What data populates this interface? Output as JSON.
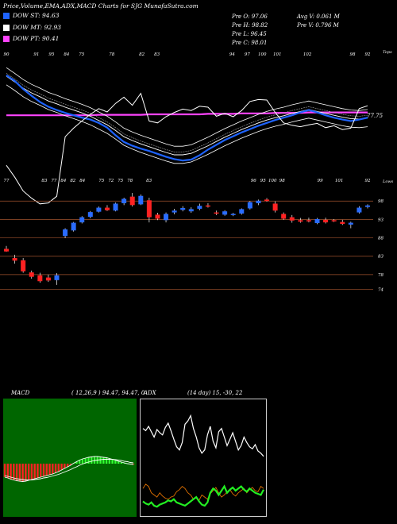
{
  "header": {
    "title": "Price,Volume,EMA,ADX,MACD Charts for SJG MunafaSutra.com",
    "stats": {
      "open": "Pre  O: 97.06",
      "high": "Pre  H: 98.82",
      "low": "Pre  L: 96.45",
      "close": "Pre  C: 98.01",
      "avg_volume": "Avg V: 0.061  M",
      "prev_volume": "Pre  V: 0.796  M"
    }
  },
  "legend": [
    {
      "label": "DOW ST: 94.63",
      "color": "#1e63ff"
    },
    {
      "label": "DOW MT: 92.93",
      "color": "#ffffff"
    },
    {
      "label": "DOW PT: 90.41",
      "color": "#ff44ff"
    }
  ],
  "upper_labels": {
    "top_tick_labels": [
      "90",
      "",
      "91",
      "95",
      "84",
      "75",
      "",
      "78",
      "",
      "82",
      "83",
      "",
      "",
      "",
      "",
      "94",
      "97",
      "100",
      "101",
      "",
      "102",
      "",
      "",
      "98",
      "92"
    ],
    "top_right": "Tops",
    "lower_tick_labels": [
      "77",
      "",
      "",
      "",
      "83",
      "77",
      "84",
      "82",
      "84",
      "",
      "75",
      "72",
      "75",
      "78",
      "",
      "83",
      "",
      "",
      "",
      "",
      "",
      "",
      "",
      "",
      "",
      "",
      "96",
      "95",
      "100",
      "98",
      "",
      "",
      "",
      "99",
      "",
      "101",
      "",
      "",
      "92"
    ],
    "lower_right": "Lows",
    "ema_value": "77.75"
  },
  "chart_data": [
    {
      "type": "candlestick",
      "title": "",
      "y_ticks": [
        98,
        93,
        88,
        83,
        78,
        74
      ],
      "ylim": [
        71.5,
        101.5
      ],
      "candles": [
        {
          "o": 85.0,
          "h": 85.8,
          "l": 84.2,
          "c": 84.3,
          "color": "red"
        },
        {
          "o": 82.5,
          "h": 83.4,
          "l": 81.0,
          "c": 81.8,
          "color": "red"
        },
        {
          "o": 81.9,
          "h": 82.5,
          "l": 78.5,
          "c": 78.9,
          "color": "red"
        },
        {
          "o": 78.6,
          "h": 79.1,
          "l": 76.9,
          "c": 77.4,
          "color": "red"
        },
        {
          "o": 77.8,
          "h": 78.5,
          "l": 75.8,
          "c": 76.2,
          "color": "red"
        },
        {
          "o": 77.2,
          "h": 78.0,
          "l": 76.0,
          "c": 76.4,
          "color": "red"
        },
        {
          "o": 76.5,
          "h": 78.4,
          "l": 75.2,
          "c": 77.8,
          "color": "blue"
        },
        {
          "o": 88.5,
          "h": 90.6,
          "l": 87.9,
          "c": 90.3,
          "color": "blue"
        },
        {
          "o": 90.0,
          "h": 92.3,
          "l": 89.7,
          "c": 92.1,
          "color": "blue"
        },
        {
          "o": 92.2,
          "h": 93.9,
          "l": 91.9,
          "c": 93.6,
          "color": "blue"
        },
        {
          "o": 93.7,
          "h": 95.3,
          "l": 93.3,
          "c": 95.0,
          "color": "blue"
        },
        {
          "o": 95.1,
          "h": 96.5,
          "l": 94.9,
          "c": 96.2,
          "color": "blue"
        },
        {
          "o": 96.2,
          "h": 96.9,
          "l": 95.3,
          "c": 95.5,
          "color": "red"
        },
        {
          "o": 95.4,
          "h": 97.6,
          "l": 95.2,
          "c": 97.3,
          "color": "blue"
        },
        {
          "o": 97.4,
          "h": 98.9,
          "l": 96.9,
          "c": 98.6,
          "color": "blue"
        },
        {
          "o": 99.2,
          "h": 100.2,
          "l": 96.5,
          "c": 96.9,
          "color": "red"
        },
        {
          "o": 97.1,
          "h": 99.8,
          "l": 96.9,
          "c": 99.4,
          "color": "blue"
        },
        {
          "o": 98.2,
          "h": 98.9,
          "l": 92.2,
          "c": 93.6,
          "color": "red"
        },
        {
          "o": 94.3,
          "h": 94.8,
          "l": 92.8,
          "c": 93.2,
          "color": "red"
        },
        {
          "o": 92.8,
          "h": 94.9,
          "l": 92.2,
          "c": 94.5,
          "color": "blue"
        },
        {
          "o": 94.9,
          "h": 95.9,
          "l": 94.4,
          "c": 95.4,
          "color": "blue"
        },
        {
          "o": 95.6,
          "h": 96.6,
          "l": 95.2,
          "c": 96.1,
          "color": "blue"
        },
        {
          "o": 95.2,
          "h": 96.3,
          "l": 94.8,
          "c": 95.8,
          "color": "blue"
        },
        {
          "o": 95.9,
          "h": 97.3,
          "l": 95.5,
          "c": 96.7,
          "color": "blue"
        },
        {
          "o": 96.8,
          "h": 97.4,
          "l": 96.2,
          "c": 96.5,
          "color": "red"
        },
        {
          "o": 94.9,
          "h": 95.4,
          "l": 94.2,
          "c": 94.6,
          "color": "red"
        },
        {
          "o": 94.3,
          "h": 95.5,
          "l": 94.0,
          "c": 95.2,
          "color": "blue"
        },
        {
          "o": 94.2,
          "h": 94.8,
          "l": 93.9,
          "c": 94.5,
          "color": "blue"
        },
        {
          "o": 94.6,
          "h": 96.0,
          "l": 94.3,
          "c": 95.8,
          "color": "blue"
        },
        {
          "o": 96.0,
          "h": 98.0,
          "l": 95.7,
          "c": 97.7,
          "color": "blue"
        },
        {
          "o": 97.4,
          "h": 98.4,
          "l": 96.9,
          "c": 98.1,
          "color": "blue"
        },
        {
          "o": 98.4,
          "h": 98.8,
          "l": 97.8,
          "c": 98.0,
          "color": "red"
        },
        {
          "o": 97.3,
          "h": 97.9,
          "l": 94.9,
          "c": 95.4,
          "color": "red"
        },
        {
          "o": 94.5,
          "h": 94.9,
          "l": 92.9,
          "c": 93.2,
          "color": "red"
        },
        {
          "o": 93.6,
          "h": 94.2,
          "l": 92.1,
          "c": 92.7,
          "color": "red"
        },
        {
          "o": 92.8,
          "h": 93.4,
          "l": 92.1,
          "c": 92.4,
          "color": "red"
        },
        {
          "o": 92.5,
          "h": 93.5,
          "l": 92.2,
          "c": 92.8,
          "color": "red"
        },
        {
          "o": 92.0,
          "h": 93.4,
          "l": 91.7,
          "c": 93.1,
          "color": "blue"
        },
        {
          "o": 92.9,
          "h": 93.5,
          "l": 91.9,
          "c": 92.2,
          "color": "red"
        },
        {
          "o": 92.8,
          "h": 93.1,
          "l": 92.3,
          "c": 92.6,
          "color": "red"
        },
        {
          "o": 92.3,
          "h": 92.9,
          "l": 91.5,
          "c": 91.8,
          "color": "red"
        },
        {
          "o": 91.6,
          "h": 92.4,
          "l": 90.6,
          "c": 92.1,
          "color": "blue"
        },
        {
          "o": 94.9,
          "h": 96.6,
          "l": 94.6,
          "c": 96.2,
          "color": "blue"
        },
        {
          "o": 96.4,
          "h": 97.1,
          "l": 96.0,
          "c": 96.8,
          "color": "blue"
        }
      ],
      "ema": {
        "blue": [
          98.2,
          97.0,
          95.3,
          93.9,
          92.6,
          91.6,
          90.9,
          90.3,
          89.8,
          89.3,
          88.9,
          88.2,
          87.2,
          85.6,
          84.2,
          83.4,
          82.8,
          82.3,
          81.7,
          81.1,
          80.6,
          80.3,
          80.5,
          81.4,
          82.6,
          83.6,
          84.6,
          85.4,
          86.2,
          86.9,
          87.6,
          88.2,
          88.8,
          89.3,
          89.8,
          90.4,
          90.9,
          90.4,
          89.8,
          89.3,
          88.9,
          88.6,
          88.9,
          89.3
        ],
        "white": [
          98.0,
          96.8,
          95.5,
          94.5,
          93.7,
          92.8,
          92.2,
          91.5,
          90.9,
          90.3,
          89.6,
          88.7,
          87.8,
          86.6,
          85.3,
          84.5,
          83.8,
          83.2,
          82.6,
          82.0,
          81.5,
          81.5,
          81.8,
          82.6,
          83.4,
          84.3,
          85.2,
          86.0,
          86.8,
          87.5,
          88.2,
          88.8,
          89.3,
          89.7,
          90.2,
          90.6,
          91.0,
          90.6,
          90.2,
          89.8,
          89.4,
          89.1,
          89.0,
          89.2
        ],
        "magenta": [
          89.8,
          89.8,
          89.8,
          89.8,
          89.8,
          89.8,
          89.8,
          89.8,
          89.8,
          89.8,
          89.8,
          89.9,
          89.9,
          89.9,
          89.9,
          89.9,
          89.9,
          90.0,
          90.0,
          90.0,
          90.0,
          90.0,
          90.0,
          90.0,
          90.1,
          90.1,
          90.1,
          90.1,
          90.2,
          90.2,
          90.2,
          90.2,
          90.3,
          90.3,
          90.3,
          90.3,
          90.4,
          90.4,
          90.4,
          90.4,
          90.4,
          90.4,
          90.4,
          90.4
        ]
      }
    },
    {
      "type": "line",
      "title": "MACD",
      "params": "( 12,26,9 ) 94.47,  94.47,  0",
      "series": [
        {
          "name": "",
          "values": [
            -3.4,
            -3.6,
            -3.9,
            -4.1,
            -4.3,
            -4.4,
            -4.5,
            -4.4,
            -4.2,
            -4.0,
            -3.8,
            -3.6,
            -3.4,
            -3.2,
            -3.0,
            -2.8,
            -2.6,
            -2.3,
            -2.0,
            -1.6,
            -1.2,
            -0.8,
            -0.4,
            0.1,
            0.5,
            0.9,
            1.2,
            1.4,
            1.6,
            1.7,
            1.8,
            1.8,
            1.7,
            1.6,
            1.5,
            1.3,
            1.1,
            0.9,
            0.6,
            0.4,
            0.2,
            0.0,
            -0.1,
            -0.2
          ]
        },
        {
          "name": "",
          "values": [
            -3.0,
            -3.2,
            -3.4,
            -3.6,
            -3.8,
            -3.9,
            -4.0,
            -4.1,
            -4.1,
            -4.1,
            -4.0,
            -3.9,
            -3.8,
            -3.6,
            -3.5,
            -3.3,
            -3.1,
            -2.9,
            -2.7,
            -2.4,
            -2.1,
            -1.8,
            -1.5,
            -1.1,
            -0.8,
            -0.4,
            -0.1,
            0.2,
            0.4,
            0.6,
            0.8,
            0.9,
            1.0,
            1.1,
            1.1,
            1.1,
            1.1,
            1.0,
            0.9,
            0.8,
            0.6,
            0.5,
            0.3,
            0.2
          ]
        }
      ]
    },
    {
      "type": "line",
      "title": "ADX",
      "params": "(14  day) 15,  -30,  22",
      "series": [
        {
          "name": "",
          "values": [
            78,
            76,
            80,
            75,
            70,
            77,
            74,
            72,
            79,
            83,
            76,
            68,
            61,
            58,
            65,
            82,
            85,
            90,
            78,
            70,
            60,
            55,
            58,
            72,
            80,
            66,
            60,
            75,
            78,
            70,
            62,
            68,
            74,
            66,
            58,
            62,
            70,
            65,
            61,
            59,
            63,
            57,
            55,
            52
          ]
        },
        {
          "name": "",
          "values": [
            22,
            26,
            24,
            18,
            16,
            14,
            18,
            15,
            13,
            12,
            14,
            15,
            19,
            21,
            24,
            22,
            18,
            16,
            12,
            14,
            11,
            16,
            14,
            12,
            17,
            20,
            23,
            18,
            14,
            16,
            19,
            21,
            17,
            15,
            18,
            20,
            22,
            18,
            21,
            23,
            20,
            19,
            24,
            22
          ]
        },
        {
          "name": "",
          "values": [
            10,
            8,
            7,
            9,
            6,
            5,
            7,
            8,
            9,
            11,
            10,
            12,
            9,
            8,
            7,
            6,
            8,
            10,
            12,
            14,
            10,
            7,
            6,
            9,
            18,
            22,
            20,
            16,
            20,
            24,
            18,
            21,
            23,
            20,
            22,
            24,
            21,
            19,
            22,
            20,
            18,
            17,
            16,
            21
          ]
        }
      ]
    }
  ]
}
